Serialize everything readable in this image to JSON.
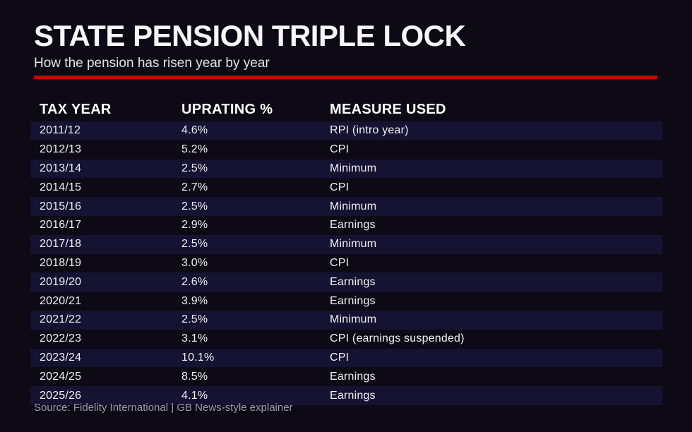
{
  "title": "STATE PENSION TRIPLE LOCK",
  "subtitle": "How the pension has risen year by year",
  "source_line": "Source: Fidelity International | GB News-style explainer",
  "colors": {
    "background": "#0d0a16",
    "row_stripe": "#161231",
    "accent_red": "#c50505",
    "heading_text": "#ffffff",
    "body_text": "#f1eff5",
    "muted_text": "#a09aac"
  },
  "table": {
    "columns": [
      "TAX YEAR",
      "UPRATING %",
      "MEASURE USED"
    ],
    "rows": [
      {
        "year": "2011/12",
        "uprating": "4.6%",
        "measure": "RPI (intro year)"
      },
      {
        "year": "2012/13",
        "uprating": "5.2%",
        "measure": "CPI"
      },
      {
        "year": "2013/14",
        "uprating": "2.5%",
        "measure": "Minimum"
      },
      {
        "year": "2014/15",
        "uprating": "2.7%",
        "measure": "CPI"
      },
      {
        "year": "2015/16",
        "uprating": "2.5%",
        "measure": "Minimum"
      },
      {
        "year": "2016/17",
        "uprating": "2.9%",
        "measure": "Earnings"
      },
      {
        "year": "2017/18",
        "uprating": "2.5%",
        "measure": "Minimum"
      },
      {
        "year": "2018/19",
        "uprating": "3.0%",
        "measure": "CPI"
      },
      {
        "year": "2019/20",
        "uprating": "2.6%",
        "measure": "Earnings"
      },
      {
        "year": "2020/21",
        "uprating": "3.9%",
        "measure": "Earnings"
      },
      {
        "year": "2021/22",
        "uprating": "2.5%",
        "measure": "Minimum"
      },
      {
        "year": "2022/23",
        "uprating": "3.1%",
        "measure": "CPI (earnings suspended)"
      },
      {
        "year": "2023/24",
        "uprating": "10.1%",
        "measure": "CPI"
      },
      {
        "year": "2024/25",
        "uprating": "8.5%",
        "measure": "Earnings"
      },
      {
        "year": "2025/26",
        "uprating": "4.1%",
        "measure": "Earnings"
      }
    ]
  },
  "chart_data": {
    "type": "table",
    "title": "STATE PENSION TRIPLE LOCK",
    "subtitle": "How the pension has risen year by year",
    "columns": [
      "TAX YEAR",
      "UPRATING %",
      "MEASURE USED"
    ],
    "rows": [
      [
        "2011/12",
        "4.6%",
        "RPI (intro year)"
      ],
      [
        "2012/13",
        "5.2%",
        "CPI"
      ],
      [
        "2013/14",
        "2.5%",
        "Minimum"
      ],
      [
        "2014/15",
        "2.7%",
        "CPI"
      ],
      [
        "2015/16",
        "2.5%",
        "Minimum"
      ],
      [
        "2016/17",
        "2.9%",
        "Earnings"
      ],
      [
        "2017/18",
        "2.5%",
        "Minimum"
      ],
      [
        "2018/19",
        "3.0%",
        "CPI"
      ],
      [
        "2019/20",
        "2.6%",
        "Earnings"
      ],
      [
        "2020/21",
        "3.9%",
        "Earnings"
      ],
      [
        "2021/22",
        "2.5%",
        "Minimum"
      ],
      [
        "2022/23",
        "3.1%",
        "CPI (earnings suspended)"
      ],
      [
        "2023/24",
        "10.1%",
        "CPI"
      ],
      [
        "2024/25",
        "8.5%",
        "Earnings"
      ],
      [
        "2025/26",
        "4.1%",
        "Earnings"
      ]
    ],
    "uprating_values_percent": [
      4.6,
      5.2,
      2.5,
      2.7,
      2.5,
      2.9,
      2.5,
      3.0,
      2.6,
      3.9,
      2.5,
      3.1,
      10.1,
      8.5,
      4.1
    ],
    "source": "Source: Fidelity International | GB News-style explainer",
    "layout_hints": {
      "background": "#0d0a16",
      "striped_rows": "odd rows highlighted #161231",
      "accent_divider": "#c50505"
    }
  }
}
